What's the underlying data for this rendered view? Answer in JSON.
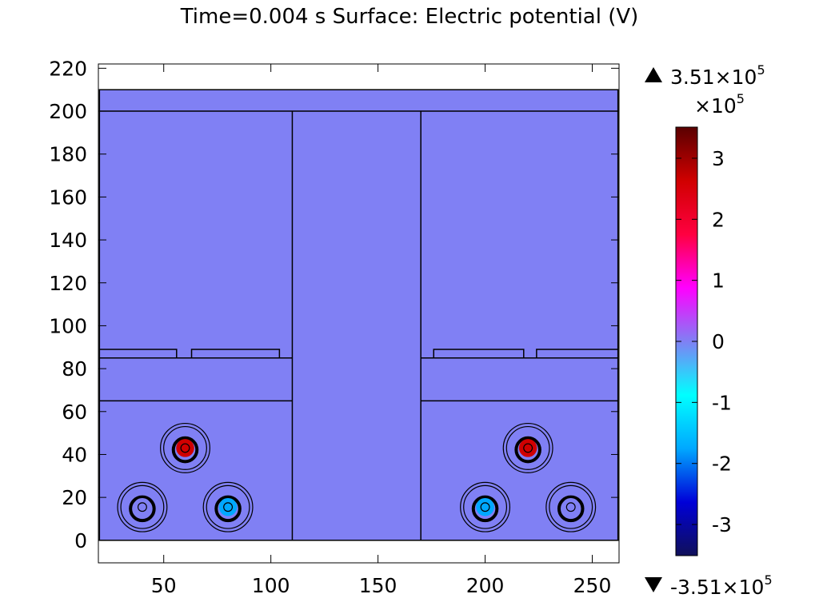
{
  "chart_data": {
    "type": "heatmap",
    "title": "Time=0.004 s Surface: Electric potential (V)",
    "xlabel": "",
    "ylabel": "",
    "xlim": [
      19.5,
      262.5
    ],
    "ylim": [
      -10.5,
      222
    ],
    "x_ticks": [
      50,
      100,
      150,
      200,
      250
    ],
    "y_ticks": [
      0,
      20,
      40,
      60,
      80,
      100,
      120,
      140,
      160,
      180,
      200,
      220
    ],
    "grid": false,
    "field_color": "#8080f4",
    "field_value": 0,
    "geometry": {
      "outer_box": {
        "x": [
          20,
          262
        ],
        "y": [
          0,
          210
        ]
      },
      "top_band_line_y": 200,
      "center_column_x": [
        110,
        170
      ],
      "trench_line_y": [
        85,
        65
      ],
      "left_slab": {
        "x": [
          20,
          110
        ],
        "y": [
          85,
          89
        ],
        "gap_x": [
          56,
          63
        ],
        "end_x": 104
      },
      "right_slab": {
        "x": [
          170,
          262
        ],
        "y": [
          85,
          89
        ],
        "gap_x": [
          218,
          224
        ],
        "start_x": 176
      }
    },
    "cables": [
      {
        "x": 60,
        "y": 43,
        "value": 220000
      },
      {
        "x": 40,
        "y": 15.5,
        "value": 0
      },
      {
        "x": 80,
        "y": 15.5,
        "value": -150000
      },
      {
        "x": 220,
        "y": 43,
        "value": 220000
      },
      {
        "x": 200,
        "y": 15.5,
        "value": -150000
      },
      {
        "x": 240,
        "y": 15.5,
        "value": 0
      }
    ],
    "colorbar": {
      "min": -351000,
      "max": 351000,
      "tick_values": [
        3,
        2,
        1,
        0,
        -1,
        -2,
        -3
      ],
      "tick_labels": [
        "3",
        "2",
        "1",
        "0",
        "-1",
        "-2",
        "-3"
      ],
      "unit_multiplier_base": "×10",
      "unit_multiplier_exp": "5",
      "max_label_base": "3.51×10",
      "max_label_exp": "5",
      "min_label_base": "-3.51×10",
      "min_label_exp": "5",
      "colormap": [
        "#10105a",
        "#0000d8",
        "#00a8ff",
        "#00ffff",
        "#8080f4",
        "#ff00ff",
        "#ff0040",
        "#d00000",
        "#5a0000"
      ]
    }
  }
}
